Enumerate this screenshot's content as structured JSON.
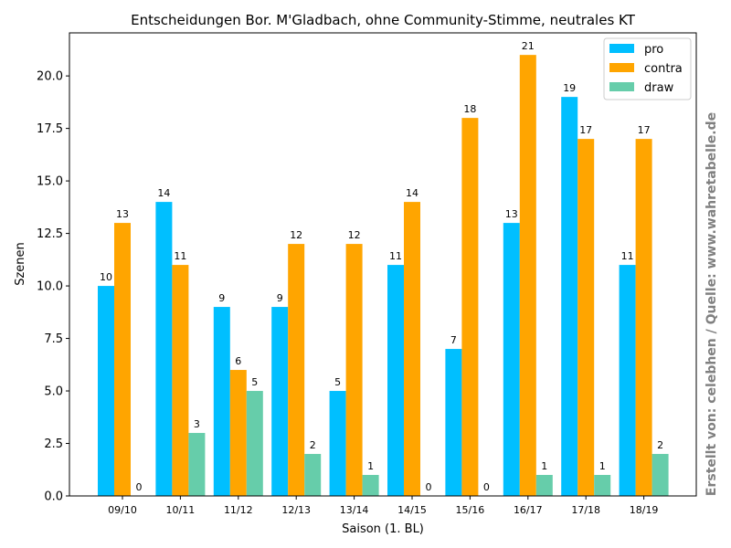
{
  "chart_data": {
    "type": "bar",
    "title": "Entscheidungen Bor. M'Gladbach, ohne Community-Stimme, neutrales KT",
    "xlabel": "Saison (1. BL)",
    "ylabel": "Szenen",
    "categories": [
      "09/10",
      "10/11",
      "11/12",
      "12/13",
      "13/14",
      "14/15",
      "15/16",
      "16/17",
      "17/18",
      "18/19"
    ],
    "series": [
      {
        "name": "pro",
        "color": "#00bfff",
        "values": [
          10,
          14,
          9,
          9,
          5,
          11,
          7,
          13,
          19,
          11
        ]
      },
      {
        "name": "contra",
        "color": "#ffa500",
        "values": [
          13,
          11,
          6,
          12,
          12,
          14,
          18,
          21,
          17,
          17
        ]
      },
      {
        "name": "draw",
        "color": "#66cdaa",
        "values": [
          0,
          3,
          5,
          2,
          1,
          0,
          0,
          1,
          1,
          2
        ]
      }
    ],
    "ylim": [
      0,
      22.05
    ],
    "yticks": [
      "0.0",
      "2.5",
      "5.0",
      "7.5",
      "10.0",
      "12.5",
      "15.0",
      "17.5",
      "20.0"
    ],
    "legend_position": "top-right",
    "grid": false
  },
  "side_note": "Erstellt von: celebhen / Quelle: www.wahretabelle.de"
}
